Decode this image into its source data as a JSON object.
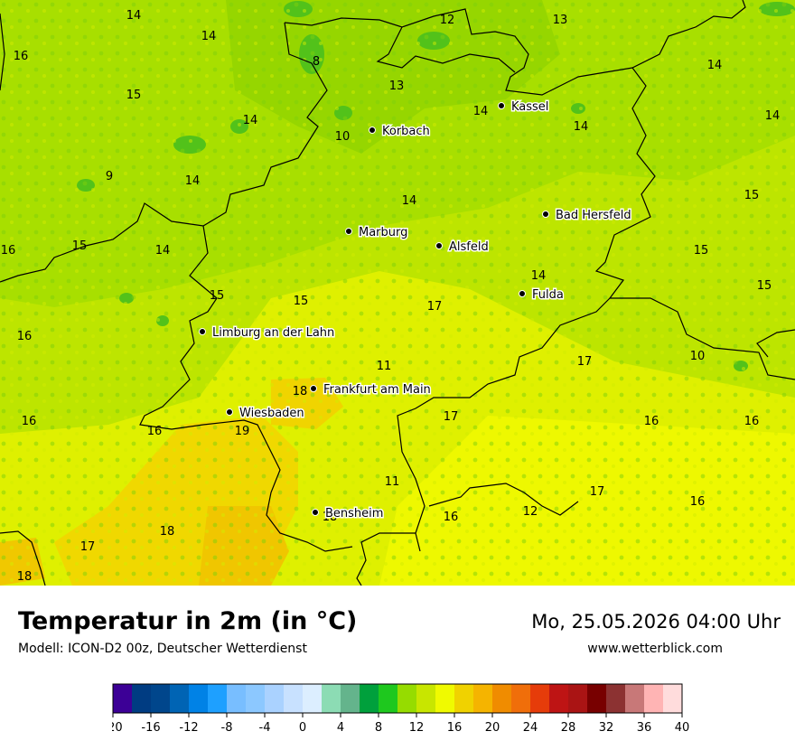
{
  "header": {
    "title": "Temperatur in 2m (in °C)",
    "subtitle": "Modell: ICON-D2 00z, Deutscher Wetterdienst",
    "datetime": "Mo, 25.05.2026 04:00 Uhr",
    "website": "www.wetterblick.com"
  },
  "cities": [
    {
      "name": "Kassel"
    },
    {
      "name": "Korbach"
    },
    {
      "name": "Bad Hersfeld"
    },
    {
      "name": "Marburg"
    },
    {
      "name": "Alsfeld"
    },
    {
      "name": "Fulda"
    },
    {
      "name": "Limburg an der Lahn"
    },
    {
      "name": "Frankfurt am Main"
    },
    {
      "name": "Wiesbaden"
    },
    {
      "name": "Bensheim"
    }
  ],
  "temperature_labels": [
    "14",
    "12",
    "13",
    "14",
    "16",
    "8",
    "13",
    "15",
    "14",
    "14",
    "14",
    "14",
    "10",
    "14",
    "9",
    "14",
    "15",
    "14",
    "15",
    "16",
    "15",
    "14",
    "15",
    "14",
    "17",
    "15",
    "15",
    "16",
    "11",
    "10",
    "17",
    "18",
    "16",
    "17",
    "16",
    "16",
    "16",
    "19",
    "11",
    "17",
    "18",
    "16",
    "12",
    "16",
    "18",
    "17",
    "18"
  ],
  "legend": {
    "colors": [
      "#3c0096",
      "#003c82",
      "#00468c",
      "#0064b4",
      "#0082e6",
      "#1ea0ff",
      "#78beff",
      "#8cc8ff",
      "#aad2ff",
      "#c8e1ff",
      "#dceeff",
      "#8cdcb4",
      "#64b48c",
      "#00a03c",
      "#1ec81e",
      "#96dc00",
      "#c8e600",
      "#f0fa00",
      "#f0d200",
      "#f5b400",
      "#f08c00",
      "#f06e0a",
      "#e63c0a",
      "#be1414",
      "#aa1414",
      "#780000",
      "#8c3232",
      "#c87878",
      "#ffb4b4",
      "#ffdcdc"
    ],
    "ticks": [
      "-20",
      "-16",
      "-12",
      "-8",
      "-4",
      "0",
      "4",
      "8",
      "12",
      "16",
      "20",
      "24",
      "28",
      "32",
      "36",
      "40"
    ]
  }
}
